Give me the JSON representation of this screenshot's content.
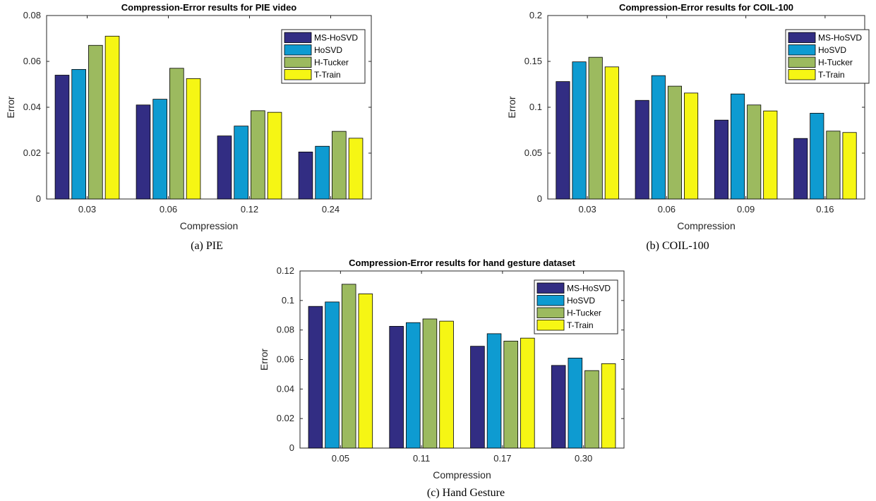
{
  "colors": {
    "MS-HoSVD": "#322d83",
    "HoSVD": "#0e9bd1",
    "H-Tucker": "#9cba5f",
    "T-Train": "#f6f614"
  },
  "chart_data": [
    {
      "type": "bar",
      "title": "Compression-Error results for PIE video",
      "xlabel": "Compression",
      "ylabel": "Error",
      "categories": [
        "0.03",
        "0.06",
        "0.12",
        "0.24"
      ],
      "ylim": [
        0,
        0.08
      ],
      "yticks": [
        "0",
        "0.02",
        "0.04",
        "0.06",
        "0.08"
      ],
      "legend_position": "top-right",
      "grid": false,
      "series": [
        {
          "name": "MS-HoSVD",
          "values": [
            0.054,
            0.041,
            0.0275,
            0.0205
          ]
        },
        {
          "name": "HoSVD",
          "values": [
            0.0565,
            0.0435,
            0.0318,
            0.023
          ]
        },
        {
          "name": "H-Tucker",
          "values": [
            0.067,
            0.057,
            0.0385,
            0.0295
          ]
        },
        {
          "name": "T-Train",
          "values": [
            0.071,
            0.0525,
            0.0378,
            0.0265
          ]
        }
      ]
    },
    {
      "type": "bar",
      "title": "Compression-Error results for COIL-100",
      "xlabel": "Compression",
      "ylabel": "Error",
      "categories": [
        "0.03",
        "0.06",
        "0.09",
        "0.16"
      ],
      "ylim": [
        0,
        0.2
      ],
      "yticks": [
        "0",
        "0.05",
        "0.1",
        "0.15",
        "0.2"
      ],
      "legend_position": "top-right",
      "grid": false,
      "series": [
        {
          "name": "MS-HoSVD",
          "values": [
            0.128,
            0.1075,
            0.086,
            0.066
          ]
        },
        {
          "name": "HoSVD",
          "values": [
            0.1495,
            0.1345,
            0.1145,
            0.0935
          ]
        },
        {
          "name": "H-Tucker",
          "values": [
            0.1545,
            0.123,
            0.1025,
            0.074
          ]
        },
        {
          "name": "T-Train",
          "values": [
            0.144,
            0.1155,
            0.096,
            0.0725
          ]
        }
      ]
    },
    {
      "type": "bar",
      "title": "Compression-Error results for hand gesture dataset",
      "xlabel": "Compression",
      "ylabel": "Error",
      "categories": [
        "0.05",
        "0.11",
        "0.17",
        "0.30"
      ],
      "ylim": [
        0,
        0.12
      ],
      "yticks": [
        "0",
        "0.02",
        "0.04",
        "0.06",
        "0.08",
        "0.1",
        "0.12"
      ],
      "legend_position": "top-right",
      "grid": false,
      "series": [
        {
          "name": "MS-HoSVD",
          "values": [
            0.096,
            0.0825,
            0.069,
            0.056
          ]
        },
        {
          "name": "HoSVD",
          "values": [
            0.099,
            0.085,
            0.0775,
            0.061
          ]
        },
        {
          "name": "H-Tucker",
          "values": [
            0.111,
            0.0875,
            0.0725,
            0.0525
          ]
        },
        {
          "name": "T-Train",
          "values": [
            0.1045,
            0.086,
            0.0745,
            0.0572
          ]
        }
      ]
    }
  ],
  "captions": {
    "a": "(a) PIE",
    "b": "(b) COIL-100",
    "c": "(c) Hand Gesture"
  }
}
